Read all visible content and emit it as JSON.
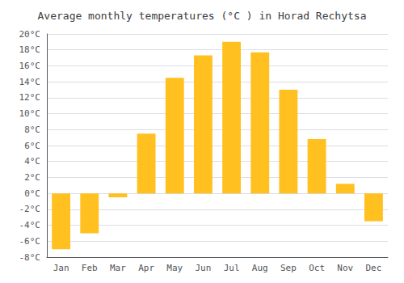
{
  "chart_data": {
    "type": "bar",
    "title": "Average monthly temperatures (°C ) in Horad Rechytsa",
    "categories": [
      "Jan",
      "Feb",
      "Mar",
      "Apr",
      "May",
      "Jun",
      "Jul",
      "Aug",
      "Sep",
      "Oct",
      "Nov",
      "Dec"
    ],
    "values": [
      -7.0,
      -5.0,
      -0.5,
      7.5,
      14.5,
      17.3,
      19.0,
      17.7,
      13.0,
      6.8,
      1.2,
      -3.5
    ],
    "color": "#FFC020",
    "ylim": [
      -8,
      20
    ],
    "yticks": [
      {
        "value": -8,
        "label": "-8°C"
      },
      {
        "value": -6,
        "label": "-6°C"
      },
      {
        "value": -4,
        "label": "-4°C"
      },
      {
        "value": -2,
        "label": "-2°C"
      },
      {
        "value": 0,
        "label": "0°C"
      },
      {
        "value": 2,
        "label": "2°C"
      },
      {
        "value": 4,
        "label": "4°C"
      },
      {
        "value": 6,
        "label": "6°C"
      },
      {
        "value": 8,
        "label": "8°C"
      },
      {
        "value": 10,
        "label": "10°C"
      },
      {
        "value": 12,
        "label": "12°C"
      },
      {
        "value": 14,
        "label": "14°C"
      },
      {
        "value": 16,
        "label": "16°C"
      },
      {
        "value": 18,
        "label": "18°C"
      },
      {
        "value": 20,
        "label": "20°C"
      }
    ],
    "grid": true
  }
}
